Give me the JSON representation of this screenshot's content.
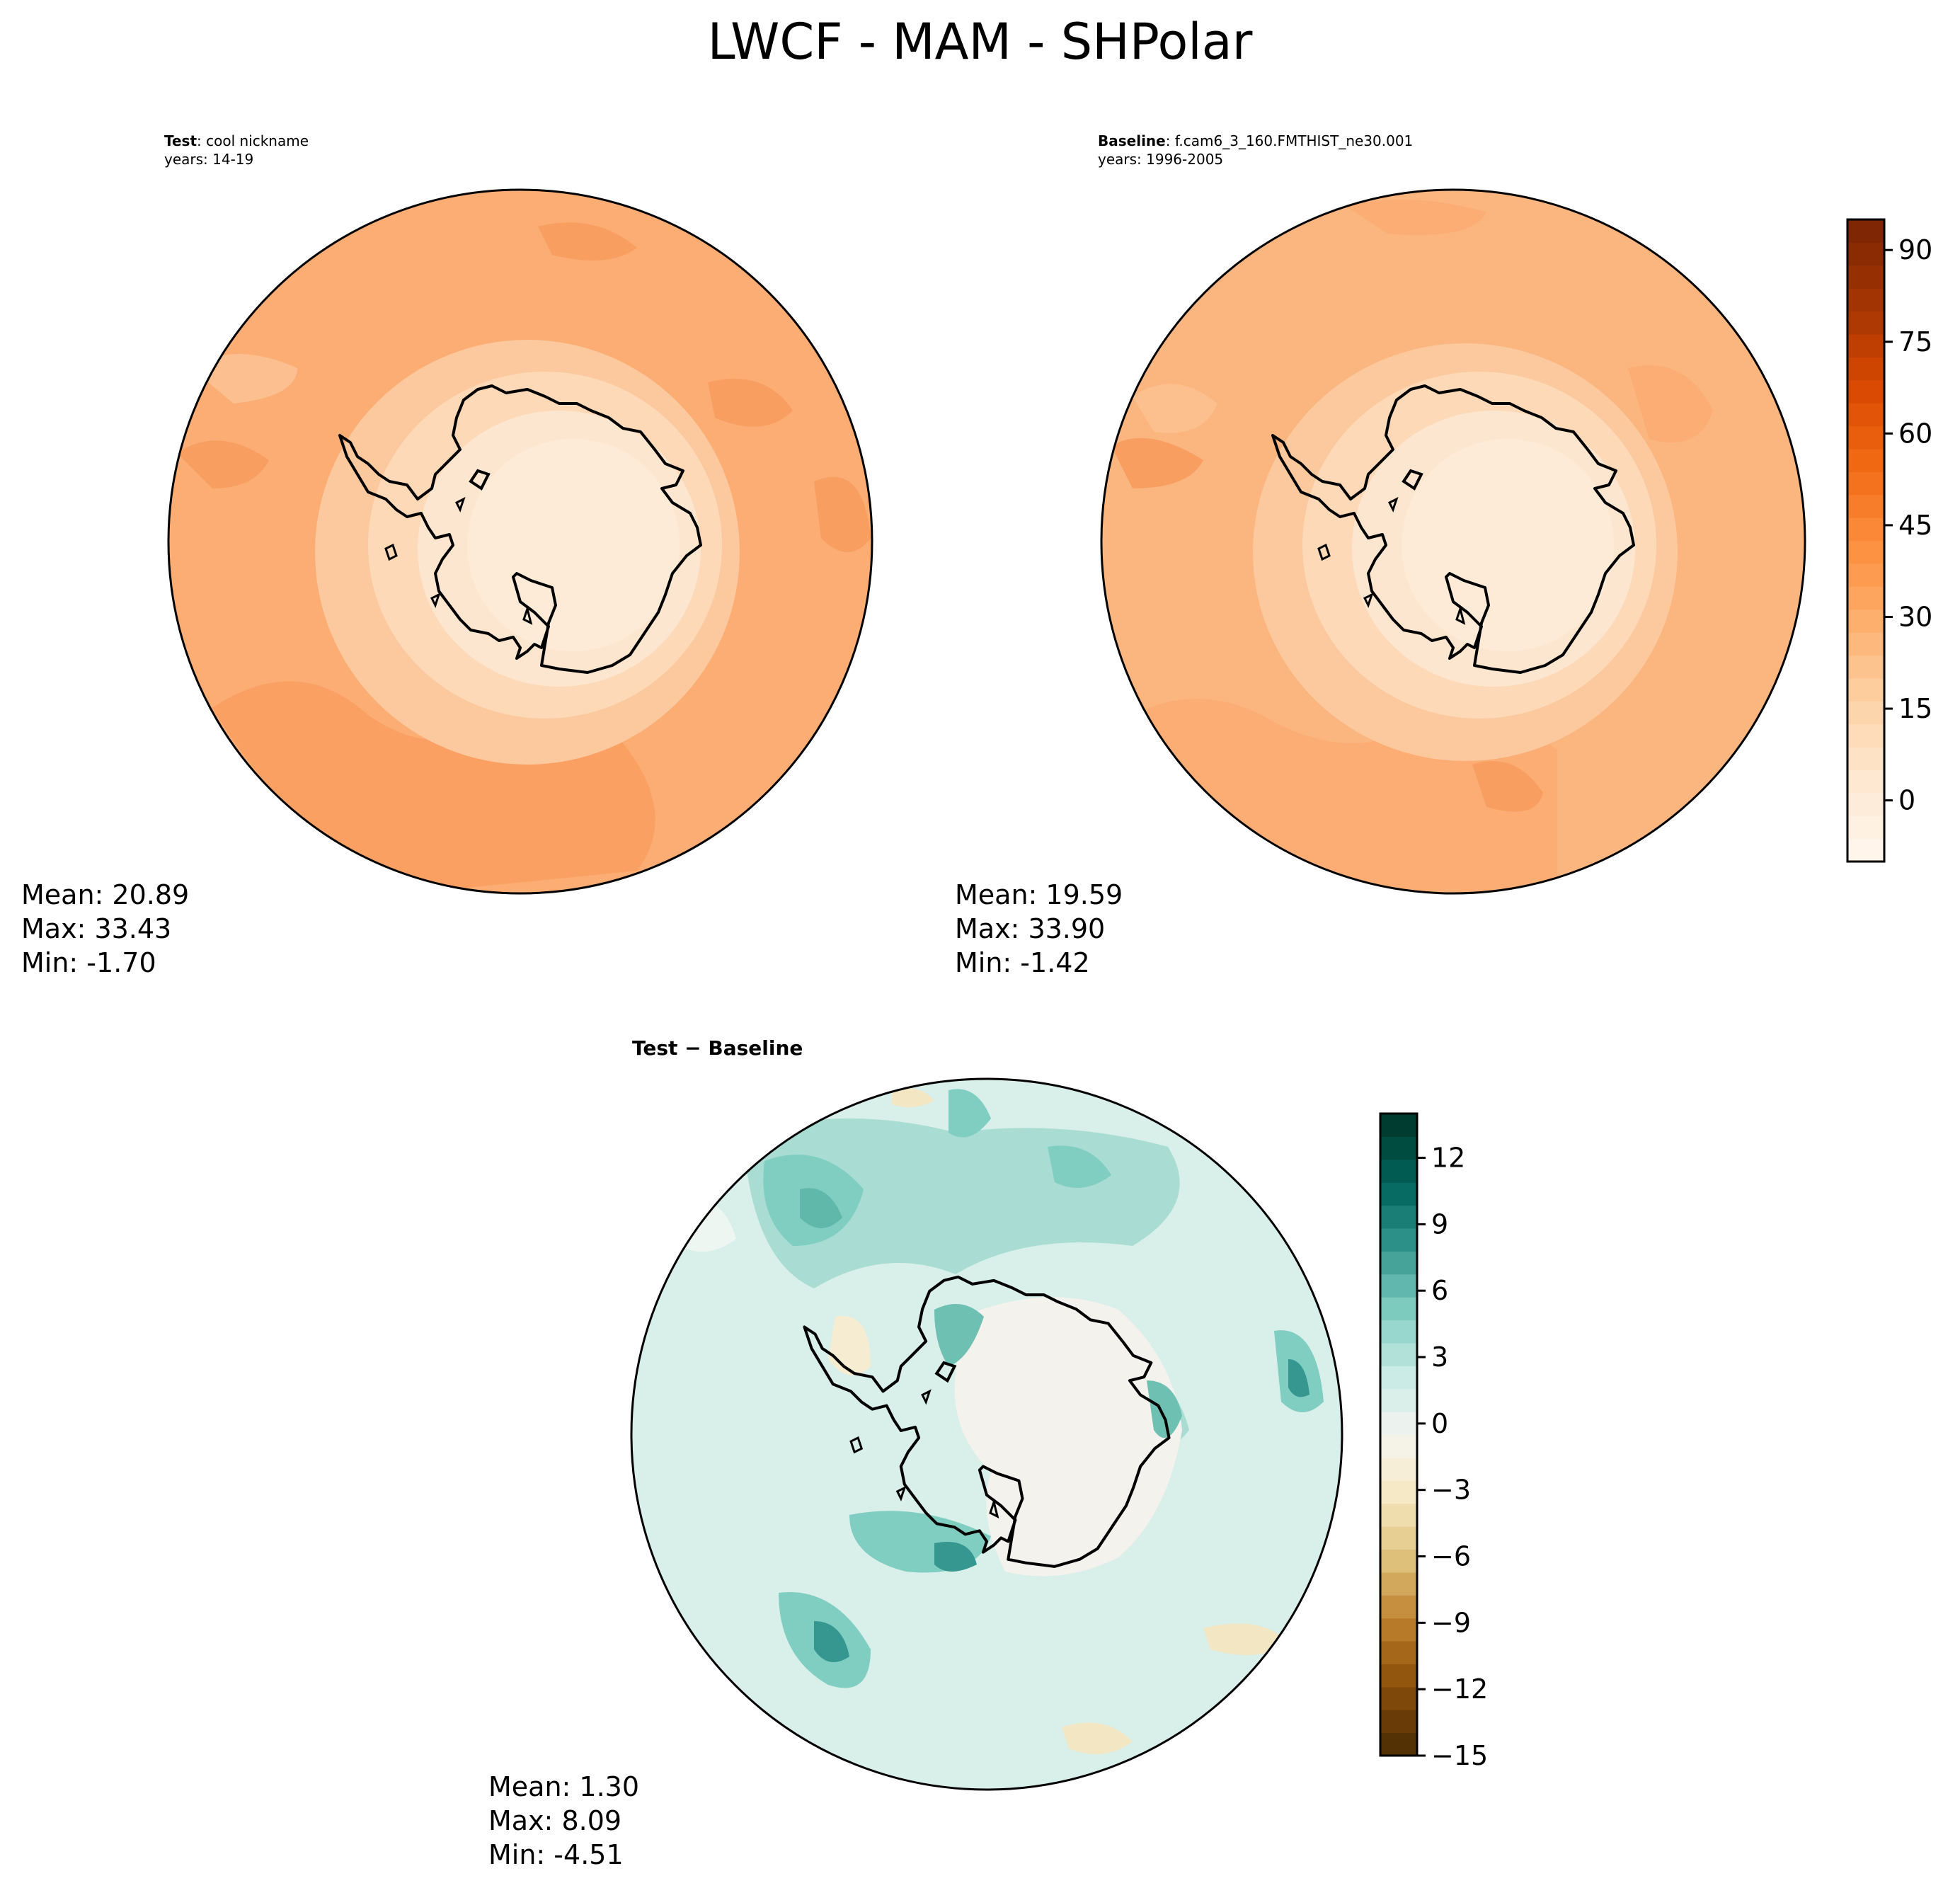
{
  "figure": {
    "suptitle": "LWCF - MAM - SHPolar"
  },
  "panels": [
    {
      "id": "test",
      "label_bold": "Test",
      "label_text": ": cool nickname",
      "years": "years: 14-19",
      "mean": "Mean: 20.89",
      "max": "Max: 33.43",
      "min": "Min: -1.70"
    },
    {
      "id": "baseline",
      "label_bold": "Baseline",
      "label_text": ": f.cam6_3_160.FMTHIST_ne30.001",
      "years": "years: 1996-2005",
      "mean": "Mean: 19.59",
      "max": "Max: 33.90",
      "min": "Min: -1.42"
    },
    {
      "id": "diff",
      "label_bold": "Test − Baseline",
      "mean": "Mean:  1.30",
      "max": "Max:  8.09",
      "min": "Min: -4.51"
    }
  ],
  "colorbars": [
    {
      "name": "abs-colorbar",
      "colormap": "Oranges",
      "range": [
        -10,
        95
      ],
      "ticks": [
        "90",
        "75",
        "60",
        "45",
        "30",
        "15",
        "0"
      ],
      "tick_values": [
        90,
        75,
        60,
        45,
        30,
        15,
        0
      ],
      "colors": [
        "#fff5eb",
        "#fee6ce",
        "#fdd0a2",
        "#fdae6b",
        "#fd8d3c",
        "#f16913",
        "#d94801",
        "#a63603",
        "#7f2704"
      ]
    },
    {
      "name": "diff-colorbar",
      "colormap": "BrBG",
      "range": [
        -15,
        14
      ],
      "ticks": [
        "12",
        "9",
        "6",
        "3",
        "0",
        "−3",
        "−6",
        "−9",
        "−12",
        "−15"
      ],
      "tick_values": [
        12,
        9,
        6,
        3,
        0,
        -3,
        -6,
        -9,
        -12,
        -15
      ],
      "colors": [
        "#543005",
        "#8c510a",
        "#bf812d",
        "#dfc27d",
        "#f6e8c3",
        "#f5f5f0",
        "#c7eae5",
        "#80cdc1",
        "#35978f",
        "#01665e",
        "#003c30"
      ]
    }
  ],
  "map_colors": {
    "ocean_abs_test": "#fbad74",
    "ocean_abs_base": "#fbb57f",
    "ocean_abs_dark": "#f89e60",
    "ice_abs": "#fdebd8",
    "ring_abs": "#fcc99e",
    "diff_bg": "#d8efea",
    "diff_mid": "#a9dcd2",
    "diff_strong": "#6ec0b2",
    "diff_neg": "#f3e6c3",
    "diff_land": "#f4f2ec"
  }
}
